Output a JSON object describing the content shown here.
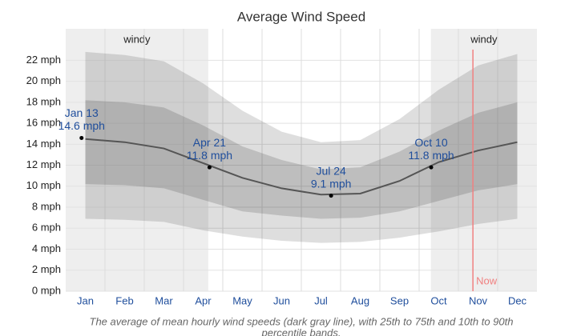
{
  "chart_data": {
    "type": "band-line",
    "title": "Average Wind Speed",
    "categories": [
      "Jan",
      "Feb",
      "Mar",
      "Apr",
      "May",
      "Jun",
      "Jul",
      "Aug",
      "Sep",
      "Oct",
      "Nov",
      "Dec"
    ],
    "median": {
      "color": "#555555",
      "values": [
        14.5,
        14.2,
        13.6,
        12.2,
        10.8,
        9.8,
        9.2,
        9.3,
        10.5,
        12.3,
        13.4,
        14.2
      ]
    },
    "p75": [
      18.2,
      18.0,
      17.5,
      15.8,
      13.8,
      12.5,
      11.6,
      11.8,
      13.3,
      15.3,
      17.0,
      18.0
    ],
    "p25": [
      10.2,
      10.1,
      9.8,
      8.7,
      7.6,
      7.2,
      6.9,
      7.0,
      7.6,
      8.6,
      9.6,
      10.2
    ],
    "p90": [
      22.8,
      22.5,
      21.9,
      19.8,
      17.2,
      15.2,
      14.2,
      14.4,
      16.4,
      19.2,
      21.5,
      22.6
    ],
    "p10": [
      6.9,
      6.8,
      6.6,
      5.8,
      5.2,
      4.8,
      4.6,
      4.7,
      5.1,
      5.7,
      6.4,
      6.9
    ],
    "band_color": "#000000",
    "annotations": [
      {
        "date": "Jan 13",
        "value": 14.6,
        "value_label": "14.6 mph"
      },
      {
        "date": "Apr 21",
        "value": 11.8,
        "value_label": "11.8 mph"
      },
      {
        "date": "Jul 24",
        "value": 9.1,
        "value_label": "9.1 mph"
      },
      {
        "date": "Oct 10",
        "value": 11.8,
        "value_label": "11.8 mph"
      }
    ],
    "regions": [
      "windy",
      "windy"
    ],
    "now_label": "Now",
    "ylim": [
      0,
      25
    ],
    "yticks": [
      {
        "value": 0,
        "label": "0 mph"
      },
      {
        "value": 2,
        "label": "2 mph"
      },
      {
        "value": 4,
        "label": "4 mph"
      },
      {
        "value": 6,
        "label": "6 mph"
      },
      {
        "value": 8,
        "label": "8 mph"
      },
      {
        "value": 10,
        "label": "10 mph"
      },
      {
        "value": 12,
        "label": "12 mph"
      },
      {
        "value": 14,
        "label": "14 mph"
      },
      {
        "value": 16,
        "label": "16 mph"
      },
      {
        "value": 18,
        "label": "18 mph"
      },
      {
        "value": 20,
        "label": "20 mph"
      },
      {
        "value": 22,
        "label": "22 mph"
      }
    ],
    "grid": true,
    "caption": [
      "The average of mean hourly wind speeds (dark gray line), with 25th to 75th and 10th to 90th",
      "percentile bands."
    ]
  }
}
